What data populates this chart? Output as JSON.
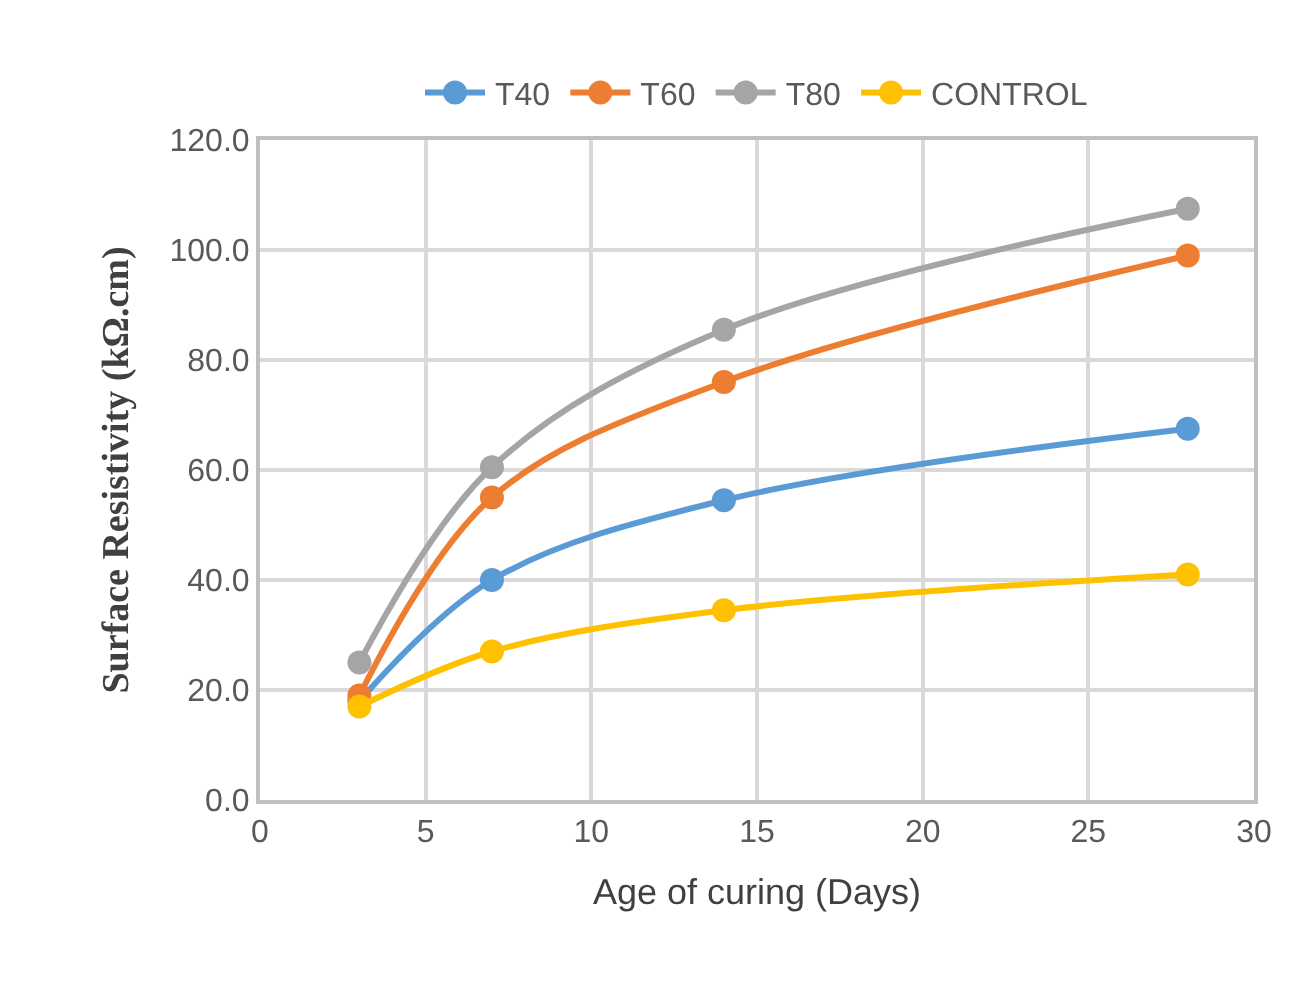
{
  "chart_data": {
    "type": "line",
    "xlabel": "Age of curing (Days)",
    "ylabel": "Surface Resistivity (kΩ.cm)",
    "x": [
      3,
      7,
      14,
      28
    ],
    "series": [
      {
        "name": "T40",
        "color": "#5b9bd5",
        "values": [
          18,
          40,
          54.5,
          67.5
        ]
      },
      {
        "name": "T60",
        "color": "#ed7d31",
        "values": [
          19,
          55,
          76,
          99
        ]
      },
      {
        "name": "T80",
        "color": "#a5a5a5",
        "values": [
          25,
          60.5,
          85.5,
          107.5
        ]
      },
      {
        "name": "CONTROL",
        "color": "#ffc000",
        "values": [
          17,
          27,
          34.5,
          41
        ]
      }
    ],
    "xlim": [
      0,
      30
    ],
    "xticks": [
      0,
      5,
      10,
      15,
      20,
      25,
      30
    ],
    "ylim": [
      0,
      120
    ],
    "yticks": [
      {
        "value": 0,
        "label": "0.0"
      },
      {
        "value": 20,
        "label": "20.0"
      },
      {
        "value": 40,
        "label": "40.0"
      },
      {
        "value": 60,
        "label": "60.0"
      },
      {
        "value": 80,
        "label": "80.0"
      },
      {
        "value": 100,
        "label": "100.0"
      },
      {
        "value": 120,
        "label": "120.0"
      }
    ],
    "grid": true,
    "legend": "top",
    "marker": "circle",
    "line_style": "solid"
  }
}
